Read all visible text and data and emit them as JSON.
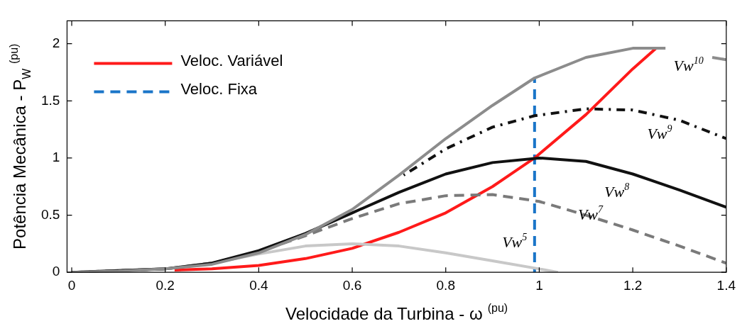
{
  "chart_data": {
    "type": "line",
    "xlabel": "Velocidade da Turbina - ω $^{(pu)}$",
    "ylabel": "Potência Mecânica - P$_{W}$ $^{(pu)}$",
    "xlim": [
      -0.01,
      1.4
    ],
    "xticks": [
      0,
      0.2,
      0.4,
      0.6,
      0.8,
      1,
      1.2,
      1.4
    ],
    "ylim": [
      0,
      2.2
    ],
    "yticks": [
      0,
      0.5,
      1,
      1.5,
      2
    ],
    "grid": false,
    "legend": "top left",
    "marker": "none",
    "series": [
      {
        "color": "#8c8c8c",
        "line_style": "solid",
        "x": [
          0,
          0.1,
          0.2,
          0.3,
          0.4,
          0.5,
          0.6,
          0.7,
          0.8,
          0.9,
          0.99,
          1.1,
          1.2,
          1.27,
          1.32,
          1.37,
          1.4
        ],
        "values": [
          0,
          0.01,
          0.03,
          0.07,
          0.17,
          0.33,
          0.55,
          0.85,
          1.17,
          1.46,
          1.7,
          1.88,
          1.96,
          1.96,
          null,
          1.88,
          1.86
        ]
      },
      {
        "color": "#111111",
        "line_style": "dotted",
        "x": [
          0.71,
          0.8,
          0.9,
          0.99,
          1.1,
          1.2,
          1.3,
          1.4
        ],
        "values": [
          0.85,
          1.08,
          1.27,
          1.37,
          1.43,
          1.42,
          1.33,
          1.17
        ]
      },
      {
        "color": "#111111",
        "line_style": "solid",
        "x": [
          0,
          0.2,
          0.3,
          0.4,
          0.5,
          0.6,
          0.7,
          0.8,
          0.9,
          1,
          1.1,
          1.2,
          1.3,
          1.4
        ],
        "values": [
          0,
          0.03,
          0.08,
          0.19,
          0.34,
          0.52,
          0.7,
          0.86,
          0.96,
          1,
          0.97,
          0.86,
          0.72,
          0.57
        ]
      },
      {
        "color": "#7a7a7a",
        "line_style": "dashed",
        "x": [
          0,
          0.2,
          0.3,
          0.4,
          0.5,
          0.6,
          0.7,
          0.8,
          0.9,
          1,
          1.1,
          1.2,
          1.3,
          1.4
        ],
        "values": [
          0,
          0.03,
          0.08,
          0.18,
          0.32,
          0.47,
          0.6,
          0.67,
          0.68,
          0.62,
          0.5,
          0.37,
          0.23,
          0.08
        ]
      },
      {
        "color": "#c8c8c8",
        "line_style": "solid",
        "x": [
          0,
          0.2,
          0.3,
          0.4,
          0.5,
          0.6,
          0.7,
          0.8,
          0.9,
          1,
          1.04
        ],
        "values": [
          0,
          0.03,
          0.08,
          0.16,
          0.23,
          0.25,
          0.23,
          0.17,
          0.1,
          0.03,
          0
        ]
      },
      {
        "name": "Veloc. Variável",
        "color": "#ff1a1a",
        "line_style": "solid",
        "x": [
          0.22,
          0.3,
          0.4,
          0.5,
          0.6,
          0.7,
          0.8,
          0.9,
          0.99,
          1.1,
          1.2,
          1.25
        ],
        "values": [
          0.02,
          0.03,
          0.06,
          0.12,
          0.21,
          0.35,
          0.52,
          0.75,
          1,
          1.38,
          1.78,
          1.96
        ]
      },
      {
        "name": "Veloc. Fixa",
        "color": "#1a75c8",
        "line_style": "dashed",
        "x": [
          0.99,
          0.99
        ],
        "values": [
          0,
          1.7
        ]
      }
    ],
    "annotations": [
      "Vw$^{10}$",
      "Vw$^{9}$",
      "Vw$^{8}$",
      "Vw$^{7}$",
      "Vw$^{5}$"
    ]
  }
}
